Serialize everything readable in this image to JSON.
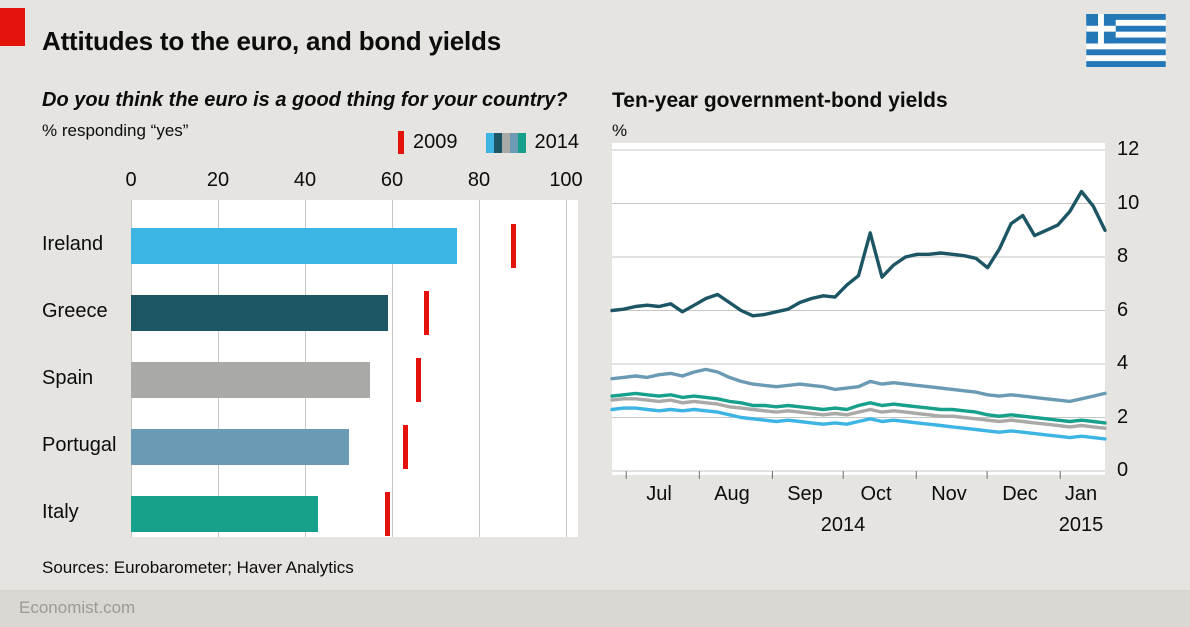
{
  "header": {
    "title": "Attitudes to the euro, and bond yields",
    "flag_icon": "greece-flag"
  },
  "colors": {
    "accent_red": "#E3120B",
    "background": "#E5E4E0",
    "panel": "#FFFFFF",
    "footer_band": "#D8D7D2",
    "grid": "#C6C6C2",
    "axis_tick": "#6F6F6B",
    "flag_blue": "#2478B8",
    "countries": {
      "Ireland": "#3CB5E5",
      "Greece": "#1C5564",
      "Spain": "#A9A9A7",
      "Portugal": "#6A9AB4",
      "Italy": "#17A08B"
    }
  },
  "chart_data": [
    {
      "type": "bar",
      "orientation": "horizontal",
      "title": "Do you think the euro is a good thing for your country?",
      "subtitle": "% responding “yes”",
      "categories": [
        "Ireland",
        "Greece",
        "Spain",
        "Portugal",
        "Italy"
      ],
      "series": [
        {
          "name": "2014",
          "values": [
            75,
            59,
            55,
            50,
            43
          ]
        },
        {
          "name": "2009",
          "values": [
            88,
            68,
            66,
            63,
            59
          ]
        }
      ],
      "xticks": [
        0,
        20,
        40,
        60,
        80,
        100
      ],
      "xlim": [
        0,
        100
      ],
      "legend_position": "top-right",
      "grid": "vertical"
    },
    {
      "type": "line",
      "title": "Ten-year government-bond yields",
      "ylabel": "%",
      "yticks": [
        0,
        2,
        4,
        6,
        8,
        10,
        12
      ],
      "ylim": [
        0,
        12
      ],
      "total_days": 209,
      "tick_days": [
        6,
        37,
        68,
        98,
        129,
        159,
        190
      ],
      "months": [
        {
          "label": "Jul",
          "day": 20
        },
        {
          "label": "Aug",
          "day": 51
        },
        {
          "label": "Sep",
          "day": 82
        },
        {
          "label": "Oct",
          "day": 112
        },
        {
          "label": "Nov",
          "day": 143
        },
        {
          "label": "Dec",
          "day": 173
        },
        {
          "label": "Jan",
          "day": 199
        }
      ],
      "years": [
        {
          "label": "2014",
          "day": 98
        },
        {
          "label": "2015",
          "day": 199
        }
      ],
      "series": [
        {
          "name": "Ireland",
          "values": [
            2.3,
            2.35,
            2.35,
            2.3,
            2.25,
            2.3,
            2.25,
            2.3,
            2.25,
            2.2,
            2.1,
            2.0,
            1.95,
            1.9,
            1.85,
            1.9,
            1.85,
            1.8,
            1.75,
            1.8,
            1.75,
            1.85,
            1.95,
            1.85,
            1.9,
            1.85,
            1.8,
            1.75,
            1.7,
            1.65,
            1.6,
            1.55,
            1.5,
            1.45,
            1.5,
            1.45,
            1.4,
            1.35,
            1.3,
            1.25,
            1.3,
            1.25,
            1.2
          ]
        },
        {
          "name": "Spain",
          "values": [
            2.65,
            2.7,
            2.7,
            2.65,
            2.6,
            2.65,
            2.55,
            2.6,
            2.55,
            2.5,
            2.4,
            2.35,
            2.3,
            2.25,
            2.2,
            2.25,
            2.2,
            2.15,
            2.1,
            2.15,
            2.1,
            2.2,
            2.3,
            2.2,
            2.25,
            2.2,
            2.15,
            2.1,
            2.05,
            2.05,
            2.0,
            1.95,
            1.9,
            1.85,
            1.9,
            1.85,
            1.8,
            1.75,
            1.7,
            1.65,
            1.7,
            1.65,
            1.6
          ]
        },
        {
          "name": "Italy",
          "values": [
            2.8,
            2.85,
            2.9,
            2.85,
            2.8,
            2.85,
            2.75,
            2.8,
            2.75,
            2.7,
            2.6,
            2.55,
            2.45,
            2.45,
            2.4,
            2.45,
            2.4,
            2.35,
            2.3,
            2.35,
            2.3,
            2.45,
            2.55,
            2.45,
            2.5,
            2.45,
            2.4,
            2.35,
            2.3,
            2.3,
            2.25,
            2.2,
            2.1,
            2.05,
            2.1,
            2.05,
            2.0,
            1.95,
            1.9,
            1.85,
            1.9,
            1.85,
            1.8
          ]
        },
        {
          "name": "Portugal",
          "values": [
            3.45,
            3.5,
            3.55,
            3.5,
            3.6,
            3.65,
            3.55,
            3.7,
            3.8,
            3.7,
            3.5,
            3.35,
            3.25,
            3.2,
            3.15,
            3.2,
            3.25,
            3.2,
            3.15,
            3.05,
            3.1,
            3.15,
            3.35,
            3.25,
            3.3,
            3.25,
            3.2,
            3.15,
            3.1,
            3.05,
            3.0,
            2.95,
            2.85,
            2.8,
            2.85,
            2.8,
            2.75,
            2.7,
            2.65,
            2.6,
            2.7,
            2.8,
            2.9
          ]
        },
        {
          "name": "Greece",
          "values": [
            6.0,
            6.05,
            6.15,
            6.2,
            6.15,
            6.25,
            5.95,
            6.2,
            6.45,
            6.6,
            6.3,
            6.0,
            5.8,
            5.85,
            5.95,
            6.05,
            6.3,
            6.45,
            6.55,
            6.5,
            6.95,
            7.3,
            8.9,
            7.25,
            7.7,
            8.0,
            8.1,
            8.1,
            8.15,
            8.1,
            8.05,
            7.95,
            7.6,
            8.3,
            9.25,
            9.55,
            8.8,
            9.0,
            9.2,
            9.7,
            10.45,
            9.9,
            9.0
          ]
        }
      ],
      "legend": "none (colors match bar chart countries)"
    }
  ],
  "footer": {
    "sources": "Sources: Eurobarometer; Haver Analytics",
    "brand": "Economist.com"
  }
}
